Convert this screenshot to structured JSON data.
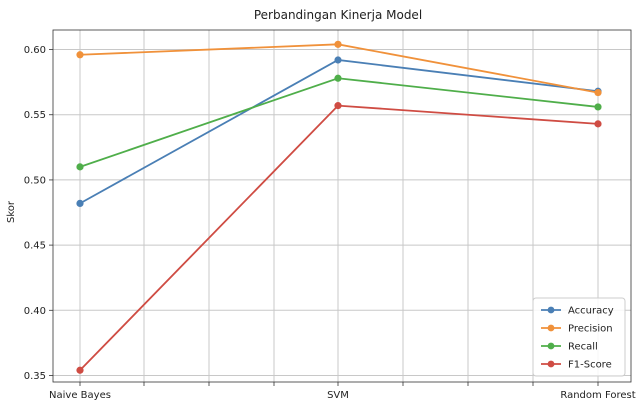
{
  "chart_data": {
    "type": "line",
    "title": "Perbandingan Kinerja Model",
    "xlabel": "",
    "ylabel": "Skor",
    "categories": [
      "Naive Bayes",
      "SVM",
      "Random Forest"
    ],
    "ylim": [
      0.345,
      0.615
    ],
    "yticks": [
      "0.35",
      "0.40",
      "0.45",
      "0.50",
      "0.55",
      "0.60"
    ],
    "grid": true,
    "legend_position": "bottom-right",
    "series": [
      {
        "name": "Accuracy",
        "color": "#4a7fb5",
        "values": [
          0.482,
          0.592,
          0.568
        ]
      },
      {
        "name": "Precision",
        "color": "#f0913a",
        "values": [
          0.596,
          0.604,
          0.567
        ]
      },
      {
        "name": "Recall",
        "color": "#4fae4a",
        "values": [
          0.51,
          0.578,
          0.556
        ]
      },
      {
        "name": "F1-Score",
        "color": "#cf4c43",
        "values": [
          0.354,
          0.557,
          0.543
        ]
      }
    ]
  }
}
